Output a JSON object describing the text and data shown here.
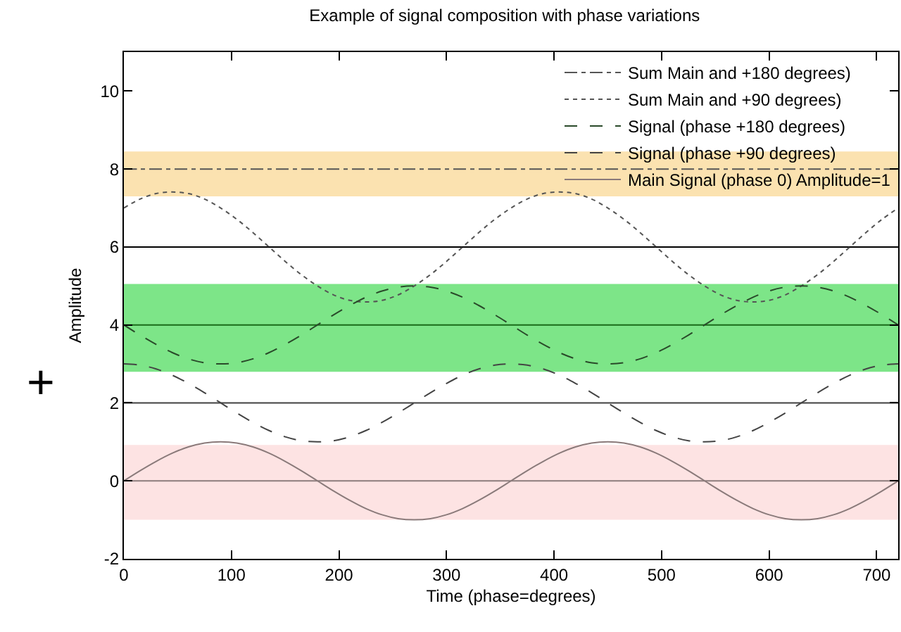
{
  "chart_data": {
    "type": "line",
    "title": "Example of signal composition with phase variations",
    "xlabel": "Time (phase=degrees)",
    "ylabel": "Amplitude",
    "x": [
      0,
      15,
      30,
      45,
      60,
      75,
      90,
      105,
      120,
      135,
      150,
      165,
      180,
      195,
      210,
      225,
      240,
      255,
      270,
      285,
      300,
      315,
      330,
      345,
      360,
      375,
      390,
      405,
      420,
      435,
      450,
      465,
      480,
      495,
      510,
      525,
      540,
      555,
      570,
      585,
      600,
      615,
      630,
      645,
      660,
      675,
      690,
      705,
      720
    ],
    "series": [
      {
        "name": "Sum Main and +180 degrees)",
        "color": "#555555",
        "line_style": "dashdot",
        "values": [
          8,
          8,
          8,
          8,
          8,
          8,
          8,
          8,
          8,
          8,
          8,
          8,
          8,
          8,
          8,
          8,
          8,
          8,
          8,
          8,
          8,
          8,
          8,
          8,
          8,
          8,
          8,
          8,
          8,
          8,
          8,
          8,
          8,
          8,
          8,
          8,
          8,
          8,
          8,
          8,
          8,
          8,
          8,
          8,
          8,
          8,
          8,
          8,
          8
        ]
      },
      {
        "name": "Sum Main and +90 degrees)",
        "color": "#555555",
        "line_style": "dotted",
        "values": [
          7,
          7.23,
          7.37,
          7.41,
          7.37,
          7.23,
          7,
          6.71,
          6.37,
          6,
          5.63,
          5.29,
          5,
          4.77,
          4.63,
          4.59,
          4.63,
          4.77,
          5,
          5.29,
          5.63,
          6,
          6.37,
          6.71,
          7,
          7.23,
          7.37,
          7.41,
          7.37,
          7.23,
          7,
          6.71,
          6.37,
          6,
          5.63,
          5.29,
          5,
          4.77,
          4.63,
          4.59,
          4.63,
          4.77,
          5,
          5.29,
          5.63,
          6,
          6.37,
          6.71,
          7
        ]
      },
      {
        "name": "Signal (phase +180 degrees)",
        "color": "#2a4a2a",
        "line_style": "dashed",
        "values": [
          4,
          3.74,
          3.5,
          3.29,
          3.13,
          3.03,
          3,
          3.03,
          3.13,
          3.29,
          3.5,
          3.74,
          4,
          4.26,
          4.5,
          4.71,
          4.87,
          4.97,
          5,
          4.97,
          4.87,
          4.71,
          4.5,
          4.26,
          4,
          3.74,
          3.5,
          3.29,
          3.13,
          3.03,
          3,
          3.03,
          3.13,
          3.29,
          3.5,
          3.74,
          4,
          4.26,
          4.5,
          4.71,
          4.87,
          4.97,
          5,
          4.97,
          4.87,
          4.71,
          4.5,
          4.26,
          4
        ]
      },
      {
        "name": "Signal (phase +90 degrees)",
        "color": "#444444",
        "line_style": "dashed",
        "values": [
          3,
          2.97,
          2.87,
          2.71,
          2.5,
          2.26,
          2,
          1.74,
          1.5,
          1.29,
          1.13,
          1.03,
          1,
          1.03,
          1.13,
          1.29,
          1.5,
          1.74,
          2,
          2.26,
          2.5,
          2.71,
          2.87,
          2.97,
          3,
          2.97,
          2.87,
          2.71,
          2.5,
          2.26,
          2,
          1.74,
          1.5,
          1.29,
          1.13,
          1.03,
          1,
          1.03,
          1.13,
          1.29,
          1.5,
          1.74,
          2,
          2.26,
          2.5,
          2.71,
          2.87,
          2.97,
          3
        ]
      },
      {
        "name": "Main Signal (phase 0) Amplitude=1",
        "color": "#8a7a7a",
        "line_style": "solid",
        "values": [
          0,
          0.26,
          0.5,
          0.71,
          0.87,
          0.97,
          1,
          0.97,
          0.87,
          0.71,
          0.5,
          0.26,
          0,
          -0.26,
          -0.5,
          -0.71,
          -0.87,
          -0.97,
          -1,
          -0.97,
          -0.87,
          -0.71,
          -0.5,
          -0.26,
          0,
          0.26,
          0.5,
          0.71,
          0.87,
          0.97,
          1,
          0.97,
          0.87,
          0.71,
          0.5,
          0.26,
          0,
          -0.26,
          -0.5,
          -0.71,
          -0.87,
          -0.97,
          -1,
          -0.97,
          -0.87,
          -0.71,
          -0.5,
          -0.26,
          0
        ]
      }
    ],
    "xlim": [
      0,
      720
    ],
    "xticks": [
      0,
      100,
      200,
      300,
      400,
      500,
      600,
      700
    ],
    "ylim": [
      -2,
      11
    ],
    "yticks": [
      -2,
      0,
      2,
      4,
      6,
      8,
      10
    ],
    "bands": [
      {
        "axis": "y",
        "from": 7.3,
        "to": 8.45,
        "color": "#fbe2b0"
      },
      {
        "axis": "y",
        "from": 2.8,
        "to": 5.05,
        "color": "#7de588"
      },
      {
        "axis": "y",
        "from": -1,
        "to": 0.92,
        "color": "#fde3e3"
      }
    ],
    "ref_lines": [
      {
        "axis": "y",
        "value": 0,
        "color": "#8c7c7c"
      },
      {
        "axis": "y",
        "value": 2,
        "color": "#404040"
      },
      {
        "axis": "y",
        "value": 4,
        "color": "#1a6b1a"
      },
      {
        "axis": "y",
        "value": 6,
        "color": "#000000"
      }
    ],
    "annotations": [
      "+"
    ],
    "grid": false,
    "legend": "top right",
    "marker": "none"
  }
}
